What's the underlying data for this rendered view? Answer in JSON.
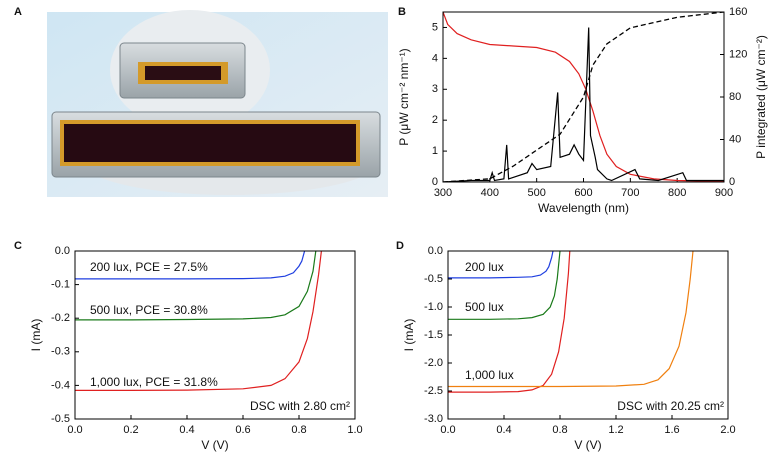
{
  "photo": {
    "label": "A"
  },
  "chart_data": [
    {
      "type": "line",
      "label": "B",
      "xlabel": "Wavelength (nm)",
      "ylabel": "P (μW cm⁻² nm⁻¹)",
      "y2label": "P integrated (μW cm⁻²)",
      "xlim": [
        300,
        900
      ],
      "xticks": [
        300,
        400,
        500,
        600,
        700,
        800,
        900
      ],
      "ylim": [
        0,
        5.5
      ],
      "yticks": [
        0,
        1,
        2,
        3,
        4,
        5
      ],
      "y2lim": [
        0,
        160
      ],
      "y2ticks": [
        0,
        40,
        80,
        120,
        160
      ],
      "series": [
        {
          "color": "#e02020",
          "x": [
            300,
            310,
            330,
            360,
            400,
            450,
            500,
            540,
            570,
            590,
            605,
            620,
            635,
            650,
            670,
            700,
            750,
            800,
            900
          ],
          "values": [
            5.5,
            5.1,
            4.8,
            4.6,
            4.45,
            4.4,
            4.35,
            4.2,
            3.9,
            3.5,
            3.0,
            2.3,
            1.5,
            0.9,
            0.5,
            0.25,
            0.1,
            0.05,
            0.02
          ]
        },
        {
          "color": "#000000",
          "x": [
            300,
            360,
            400,
            405,
            410,
            430,
            436,
            440,
            480,
            490,
            500,
            530,
            545,
            550,
            570,
            580,
            590,
            600,
            611,
            615,
            625,
            630,
            650,
            660,
            710,
            720,
            760,
            812,
            820,
            900
          ],
          "values": [
            0,
            0.05,
            0.05,
            0.3,
            0.05,
            0.1,
            1.2,
            0.1,
            0.3,
            0.6,
            0.4,
            0.5,
            2.9,
            0.8,
            0.9,
            1.2,
            0.9,
            0.7,
            5.0,
            1.5,
            0.8,
            0.4,
            0.1,
            0.05,
            0.4,
            0.1,
            0.05,
            0.3,
            0.05,
            0.05
          ]
        },
        {
          "color": "#000000",
          "dash": true,
          "axis": "y2",
          "x": [
            300,
            400,
            450,
            500,
            550,
            600,
            620,
            650,
            700,
            800,
            900
          ],
          "values": [
            0,
            3,
            15,
            30,
            45,
            80,
            110,
            130,
            145,
            155,
            160
          ]
        }
      ],
      "annotations": []
    },
    {
      "type": "line",
      "label": "C",
      "xlabel": "V (V)",
      "ylabel": "I (mA)",
      "xlim": [
        0,
        1.0
      ],
      "xticks": [
        {
          "value": 0,
          "label": "0.0"
        },
        0.2,
        0.4,
        0.6,
        0.8,
        {
          "value": 1.0,
          "label": "1.0"
        }
      ],
      "ylim": [
        -0.5,
        0
      ],
      "yticks": [
        {
          "value": 0,
          "label": "0.0"
        },
        -0.1,
        -0.2,
        -0.3,
        -0.4,
        -0.5
      ],
      "series": [
        {
          "color": "#1f3fe0",
          "x": [
            0,
            0.2,
            0.4,
            0.6,
            0.7,
            0.75,
            0.78,
            0.8,
            0.81,
            0.82
          ],
          "values": [
            -0.083,
            -0.083,
            -0.083,
            -0.082,
            -0.08,
            -0.075,
            -0.065,
            -0.045,
            -0.03,
            0
          ]
        },
        {
          "color": "#1a7a1a",
          "x": [
            0,
            0.2,
            0.4,
            0.6,
            0.7,
            0.75,
            0.8,
            0.83,
            0.85,
            0.86
          ],
          "values": [
            -0.205,
            -0.205,
            -0.204,
            -0.202,
            -0.198,
            -0.19,
            -0.165,
            -0.12,
            -0.06,
            0
          ]
        },
        {
          "color": "#e02020",
          "x": [
            0,
            0.2,
            0.4,
            0.6,
            0.7,
            0.75,
            0.8,
            0.83,
            0.85,
            0.87,
            0.88
          ],
          "values": [
            -0.415,
            -0.415,
            -0.414,
            -0.41,
            -0.4,
            -0.38,
            -0.33,
            -0.26,
            -0.18,
            -0.07,
            0
          ]
        }
      ],
      "annotations": [
        "200 lux, PCE = 27.5%",
        "500 lux, PCE = 30.8%",
        "1,000 lux, PCE = 31.8%",
        "DSC with 2.80 cm²"
      ]
    },
    {
      "type": "line",
      "label": "D",
      "xlabel": "V (V)",
      "ylabel": "I (mA)",
      "xlim": [
        0,
        2.0
      ],
      "xticks": [
        {
          "value": 0,
          "label": "0.0"
        },
        0.4,
        0.8,
        1.2,
        1.6,
        {
          "value": 2.0,
          "label": "2.0"
        }
      ],
      "ylim": [
        -3.0,
        0
      ],
      "yticks": [
        {
          "value": 0,
          "label": "0.0"
        },
        -0.5,
        {
          "value": -1.0,
          "label": "-1.0"
        },
        -1.5,
        {
          "value": -2.0,
          "label": "-2.0"
        },
        -2.5,
        {
          "value": -3.0,
          "label": "-3.0"
        }
      ],
      "series": [
        {
          "color": "#1f3fe0",
          "x": [
            0,
            0.3,
            0.5,
            0.6,
            0.66,
            0.7,
            0.72,
            0.74,
            0.75
          ],
          "values": [
            -0.48,
            -0.48,
            -0.47,
            -0.46,
            -0.43,
            -0.36,
            -0.28,
            -0.12,
            0
          ]
        },
        {
          "color": "#1a7a1a",
          "x": [
            0,
            0.3,
            0.5,
            0.6,
            0.68,
            0.73,
            0.76,
            0.78,
            0.8
          ],
          "values": [
            -1.22,
            -1.22,
            -1.21,
            -1.19,
            -1.13,
            -1.0,
            -0.8,
            -0.5,
            0
          ]
        },
        {
          "color": "#e02020",
          "x": [
            0,
            0.3,
            0.5,
            0.6,
            0.68,
            0.74,
            0.79,
            0.83,
            0.86,
            0.87
          ],
          "values": [
            -2.52,
            -2.52,
            -2.51,
            -2.48,
            -2.4,
            -2.2,
            -1.8,
            -1.2,
            -0.4,
            0
          ]
        },
        {
          "color": "#f08010",
          "x": [
            0,
            0.4,
            0.8,
            1.2,
            1.4,
            1.5,
            1.58,
            1.65,
            1.7,
            1.73,
            1.75
          ],
          "values": [
            -2.42,
            -2.42,
            -2.42,
            -2.41,
            -2.38,
            -2.3,
            -2.1,
            -1.7,
            -1.1,
            -0.5,
            0
          ]
        }
      ],
      "annotations": [
        "200 lux",
        "500 lux",
        "1,000 lux",
        "DSC with 20.25 cm²"
      ]
    }
  ]
}
